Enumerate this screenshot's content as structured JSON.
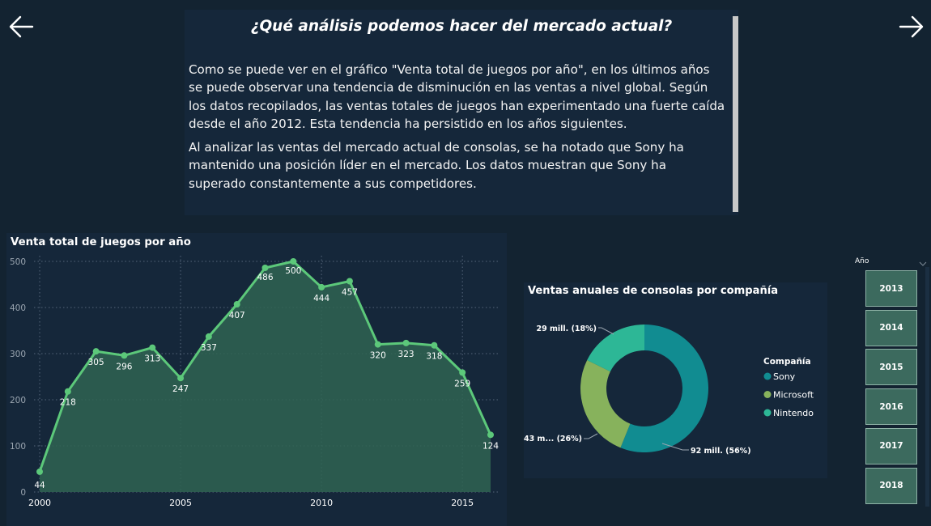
{
  "nav": {
    "back_icon": "arrow-left-icon",
    "next_icon": "arrow-right-icon"
  },
  "text_panel": {
    "heading": "¿Qué análisis podemos hacer del mercado actual?",
    "paragraphs": [
      "Como se puede ver en el gráfico \"Venta total de juegos por año\", en los últimos años se puede observar una tendencia de disminución en las ventas a nivel global. Según los datos recopilados, las ventas totales de juegos han experimentado una fuerte caída desde el año 2012. Esta tendencia ha persistido en los años siguientes.",
      "Al analizar las ventas del mercado actual de consolas, se ha notado que Sony ha mantenido una posición líder en el mercado. Los datos muestran que Sony ha superado constantemente a sus competidores."
    ]
  },
  "slicer": {
    "title": "Año",
    "options": [
      "2013",
      "2014",
      "2015",
      "2016",
      "2017",
      "2018"
    ]
  },
  "chart_data": [
    {
      "type": "area",
      "title": "Venta total de juegos por año",
      "x": [
        2000,
        2001,
        2002,
        2003,
        2004,
        2005,
        2006,
        2007,
        2008,
        2009,
        2010,
        2011,
        2012,
        2013,
        2014,
        2015,
        2016
      ],
      "values": [
        44,
        218,
        305,
        296,
        313,
        247,
        337,
        407,
        486,
        500,
        444,
        457,
        320,
        323,
        318,
        259,
        124
      ],
      "x_ticks": [
        2000,
        2005,
        2010,
        2015
      ],
      "y_ticks": [
        0,
        100,
        200,
        300,
        400,
        500
      ],
      "ylim": [
        0,
        500
      ],
      "xlim": [
        2000,
        2016
      ],
      "grid": true,
      "colors": {
        "line": "#5cc87a",
        "fill": "#2f6452"
      }
    },
    {
      "type": "pie",
      "title": "Ventas anuales de consolas por compañía",
      "legend_title": "Compañía",
      "legend_position": "right",
      "slices": [
        {
          "name": "Sony",
          "value": 92,
          "label": "92 mill. (56%)",
          "color": "#118c91"
        },
        {
          "name": "Microsoft",
          "value": 43,
          "label": "43 m... (26%)",
          "color": "#87b25c"
        },
        {
          "name": "Nintendo",
          "value": 29,
          "label": "29 mill. (18%)",
          "color": "#2db796"
        }
      ]
    }
  ]
}
